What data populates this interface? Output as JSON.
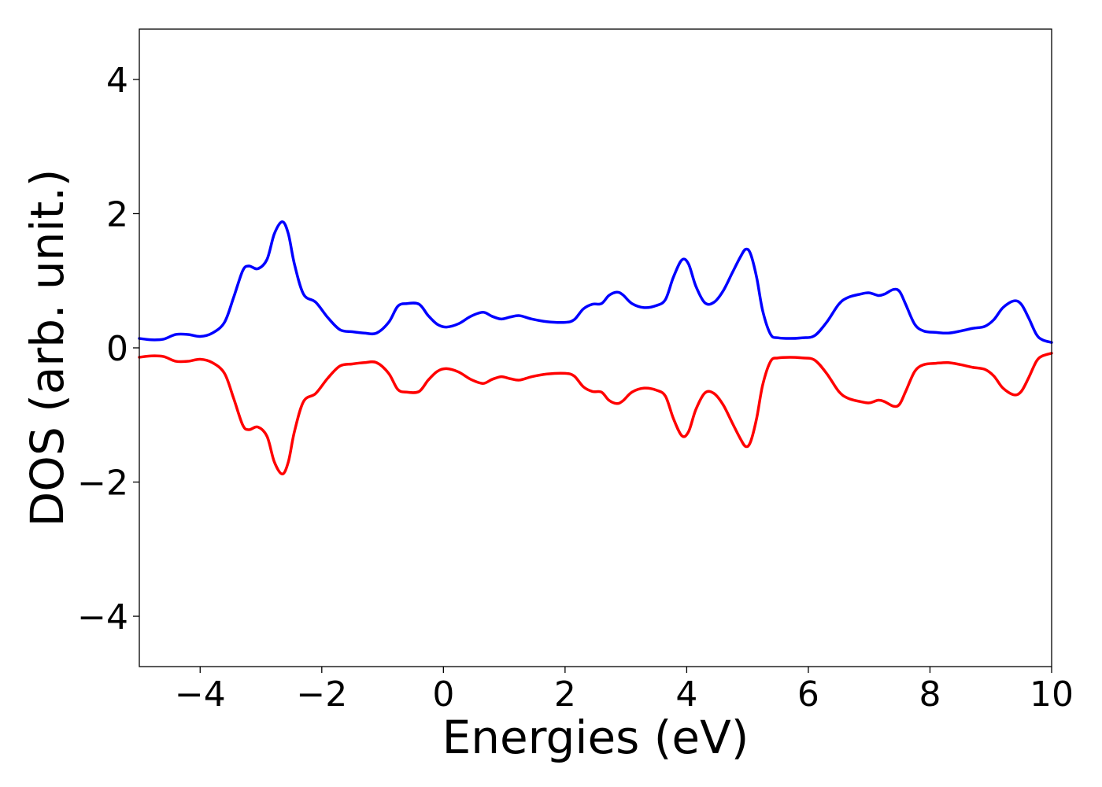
{
  "chart_data": {
    "type": "line",
    "title": "",
    "xlabel": "Energies (eV)",
    "ylabel": "DOS (arb. unit.)",
    "xlim": [
      -5,
      10
    ],
    "ylim": [
      -4.75,
      4.75
    ],
    "xticks": [
      -4,
      -2,
      0,
      2,
      4,
      6,
      8,
      10
    ],
    "yticks": [
      -4,
      -2,
      0,
      2,
      4
    ],
    "xtick_labels": [
      "−4",
      "−2",
      "0",
      "2",
      "4",
      "6",
      "8",
      "10"
    ],
    "ytick_labels": [
      "−4",
      "−2",
      "0",
      "2",
      "4"
    ],
    "grid": false,
    "legend": "none",
    "series": [
      {
        "color": "#0000ff",
        "points": [
          [
            -5.0,
            0.14
          ],
          [
            -4.8,
            0.12
          ],
          [
            -4.6,
            0.13
          ],
          [
            -4.4,
            0.2
          ],
          [
            -4.2,
            0.2
          ],
          [
            -4.0,
            0.17
          ],
          [
            -3.8,
            0.22
          ],
          [
            -3.6,
            0.38
          ],
          [
            -3.45,
            0.75
          ],
          [
            -3.3,
            1.15
          ],
          [
            -3.2,
            1.22
          ],
          [
            -3.05,
            1.18
          ],
          [
            -2.9,
            1.32
          ],
          [
            -2.78,
            1.7
          ],
          [
            -2.65,
            1.88
          ],
          [
            -2.55,
            1.7
          ],
          [
            -2.45,
            1.25
          ],
          [
            -2.3,
            0.8
          ],
          [
            -2.1,
            0.68
          ],
          [
            -1.9,
            0.45
          ],
          [
            -1.7,
            0.27
          ],
          [
            -1.5,
            0.24
          ],
          [
            -1.3,
            0.22
          ],
          [
            -1.1,
            0.22
          ],
          [
            -0.9,
            0.38
          ],
          [
            -0.75,
            0.62
          ],
          [
            -0.6,
            0.66
          ],
          [
            -0.4,
            0.65
          ],
          [
            -0.25,
            0.48
          ],
          [
            -0.1,
            0.35
          ],
          [
            0.05,
            0.31
          ],
          [
            0.25,
            0.36
          ],
          [
            0.45,
            0.47
          ],
          [
            0.65,
            0.53
          ],
          [
            0.8,
            0.47
          ],
          [
            0.95,
            0.43
          ],
          [
            1.1,
            0.46
          ],
          [
            1.25,
            0.48
          ],
          [
            1.45,
            0.43
          ],
          [
            1.7,
            0.39
          ],
          [
            2.0,
            0.38
          ],
          [
            2.15,
            0.42
          ],
          [
            2.3,
            0.58
          ],
          [
            2.45,
            0.65
          ],
          [
            2.6,
            0.66
          ],
          [
            2.72,
            0.78
          ],
          [
            2.85,
            0.83
          ],
          [
            2.95,
            0.79
          ],
          [
            3.1,
            0.66
          ],
          [
            3.3,
            0.6
          ],
          [
            3.5,
            0.63
          ],
          [
            3.65,
            0.72
          ],
          [
            3.78,
            1.05
          ],
          [
            3.92,
            1.31
          ],
          [
            4.03,
            1.25
          ],
          [
            4.15,
            0.92
          ],
          [
            4.3,
            0.67
          ],
          [
            4.45,
            0.68
          ],
          [
            4.6,
            0.85
          ],
          [
            4.75,
            1.12
          ],
          [
            4.88,
            1.35
          ],
          [
            4.97,
            1.47
          ],
          [
            5.05,
            1.4
          ],
          [
            5.15,
            1.05
          ],
          [
            5.25,
            0.55
          ],
          [
            5.38,
            0.2
          ],
          [
            5.5,
            0.15
          ],
          [
            5.7,
            0.14
          ],
          [
            5.9,
            0.15
          ],
          [
            6.1,
            0.18
          ],
          [
            6.3,
            0.38
          ],
          [
            6.5,
            0.65
          ],
          [
            6.65,
            0.75
          ],
          [
            6.85,
            0.8
          ],
          [
            7.0,
            0.82
          ],
          [
            7.15,
            0.78
          ],
          [
            7.25,
            0.8
          ],
          [
            7.4,
            0.87
          ],
          [
            7.5,
            0.84
          ],
          [
            7.6,
            0.65
          ],
          [
            7.75,
            0.35
          ],
          [
            7.9,
            0.25
          ],
          [
            8.1,
            0.23
          ],
          [
            8.3,
            0.22
          ],
          [
            8.5,
            0.25
          ],
          [
            8.7,
            0.29
          ],
          [
            8.9,
            0.32
          ],
          [
            9.05,
            0.42
          ],
          [
            9.2,
            0.6
          ],
          [
            9.38,
            0.7
          ],
          [
            9.5,
            0.65
          ],
          [
            9.62,
            0.45
          ],
          [
            9.75,
            0.2
          ],
          [
            9.85,
            0.12
          ],
          [
            10.0,
            0.08
          ]
        ]
      },
      {
        "color": "#ff0000",
        "points": [
          [
            -5.0,
            -0.14
          ],
          [
            -4.8,
            -0.12
          ],
          [
            -4.6,
            -0.13
          ],
          [
            -4.4,
            -0.2
          ],
          [
            -4.2,
            -0.2
          ],
          [
            -4.0,
            -0.17
          ],
          [
            -3.8,
            -0.22
          ],
          [
            -3.6,
            -0.38
          ],
          [
            -3.45,
            -0.75
          ],
          [
            -3.3,
            -1.15
          ],
          [
            -3.2,
            -1.22
          ],
          [
            -3.05,
            -1.18
          ],
          [
            -2.9,
            -1.32
          ],
          [
            -2.78,
            -1.7
          ],
          [
            -2.65,
            -1.88
          ],
          [
            -2.55,
            -1.7
          ],
          [
            -2.45,
            -1.25
          ],
          [
            -2.3,
            -0.8
          ],
          [
            -2.1,
            -0.68
          ],
          [
            -1.9,
            -0.45
          ],
          [
            -1.7,
            -0.27
          ],
          [
            -1.5,
            -0.24
          ],
          [
            -1.3,
            -0.22
          ],
          [
            -1.1,
            -0.22
          ],
          [
            -0.9,
            -0.38
          ],
          [
            -0.75,
            -0.62
          ],
          [
            -0.6,
            -0.66
          ],
          [
            -0.4,
            -0.65
          ],
          [
            -0.25,
            -0.48
          ],
          [
            -0.1,
            -0.35
          ],
          [
            0.05,
            -0.31
          ],
          [
            0.25,
            -0.36
          ],
          [
            0.45,
            -0.47
          ],
          [
            0.65,
            -0.53
          ],
          [
            0.8,
            -0.47
          ],
          [
            0.95,
            -0.43
          ],
          [
            1.1,
            -0.46
          ],
          [
            1.25,
            -0.48
          ],
          [
            1.45,
            -0.43
          ],
          [
            1.7,
            -0.39
          ],
          [
            2.0,
            -0.38
          ],
          [
            2.15,
            -0.42
          ],
          [
            2.3,
            -0.58
          ],
          [
            2.45,
            -0.65
          ],
          [
            2.6,
            -0.66
          ],
          [
            2.72,
            -0.78
          ],
          [
            2.85,
            -0.83
          ],
          [
            2.95,
            -0.79
          ],
          [
            3.1,
            -0.66
          ],
          [
            3.3,
            -0.6
          ],
          [
            3.5,
            -0.63
          ],
          [
            3.65,
            -0.72
          ],
          [
            3.78,
            -1.05
          ],
          [
            3.92,
            -1.31
          ],
          [
            4.03,
            -1.25
          ],
          [
            4.15,
            -0.92
          ],
          [
            4.3,
            -0.67
          ],
          [
            4.45,
            -0.68
          ],
          [
            4.6,
            -0.85
          ],
          [
            4.75,
            -1.12
          ],
          [
            4.88,
            -1.35
          ],
          [
            4.97,
            -1.47
          ],
          [
            5.05,
            -1.4
          ],
          [
            5.15,
            -1.05
          ],
          [
            5.25,
            -0.55
          ],
          [
            5.38,
            -0.2
          ],
          [
            5.5,
            -0.15
          ],
          [
            5.7,
            -0.14
          ],
          [
            5.9,
            -0.15
          ],
          [
            6.1,
            -0.18
          ],
          [
            6.3,
            -0.38
          ],
          [
            6.5,
            -0.65
          ],
          [
            6.65,
            -0.75
          ],
          [
            6.85,
            -0.8
          ],
          [
            7.0,
            -0.82
          ],
          [
            7.15,
            -0.78
          ],
          [
            7.25,
            -0.8
          ],
          [
            7.4,
            -0.87
          ],
          [
            7.5,
            -0.84
          ],
          [
            7.6,
            -0.65
          ],
          [
            7.75,
            -0.35
          ],
          [
            7.9,
            -0.25
          ],
          [
            8.1,
            -0.23
          ],
          [
            8.3,
            -0.22
          ],
          [
            8.5,
            -0.25
          ],
          [
            8.7,
            -0.29
          ],
          [
            8.9,
            -0.32
          ],
          [
            9.05,
            -0.42
          ],
          [
            9.2,
            -0.6
          ],
          [
            9.38,
            -0.7
          ],
          [
            9.5,
            -0.65
          ],
          [
            9.62,
            -0.45
          ],
          [
            9.75,
            -0.2
          ],
          [
            9.85,
            -0.12
          ],
          [
            10.0,
            -0.08
          ]
        ]
      }
    ]
  }
}
